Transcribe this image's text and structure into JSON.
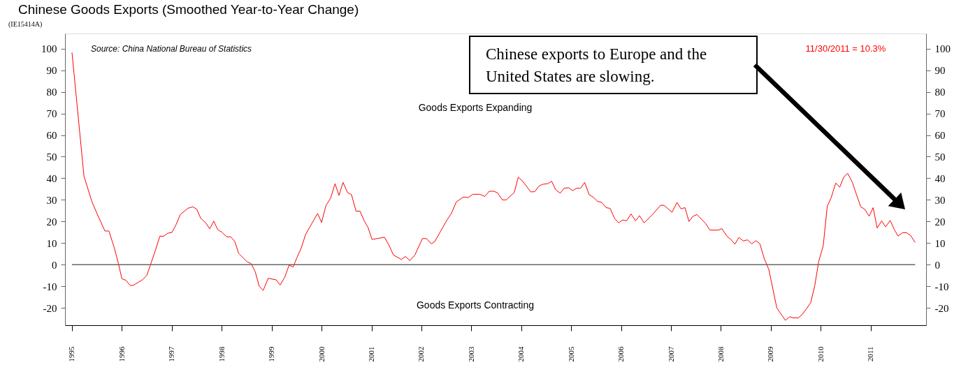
{
  "chart_data": {
    "type": "line",
    "title": "Chinese Goods Exports (Smoothed Year-to-Year Change)",
    "x": [
      1995.0,
      1995.24,
      1995.4,
      1995.52,
      1995.66,
      1995.74,
      1995.85,
      1995.93,
      1996.0,
      1996.08,
      1996.17,
      1996.24,
      1996.41,
      1996.5,
      1996.66,
      1996.76,
      1996.84,
      1996.92,
      1997.0,
      1997.08,
      1997.17,
      1997.32,
      1997.42,
      1997.5,
      1997.58,
      1997.68,
      1997.76,
      1997.84,
      1997.92,
      1998.0,
      1998.1,
      1998.18,
      1998.26,
      1998.34,
      1998.51,
      1998.59,
      1998.67,
      1998.75,
      1998.83,
      1998.93,
      1999.09,
      1999.17,
      1999.26,
      1999.35,
      1999.43,
      1999.51,
      1999.59,
      1999.68,
      1999.84,
      1999.92,
      2000.0,
      2000.09,
      2000.18,
      2000.27,
      2000.35,
      2000.43,
      2000.52,
      2000.6,
      2000.69,
      2000.77,
      2000.85,
      2000.93,
      2001.01,
      2001.26,
      2001.34,
      2001.44,
      2001.6,
      2001.68,
      2001.77,
      2001.87,
      2002.02,
      2002.1,
      2002.2,
      2002.27,
      2002.52,
      2002.6,
      2002.7,
      2002.84,
      2002.94,
      2003.03,
      2003.17,
      2003.27,
      2003.36,
      2003.45,
      2003.53,
      2003.62,
      2003.7,
      2003.86,
      2003.94,
      2004.03,
      2004.19,
      2004.27,
      2004.36,
      2004.43,
      2004.53,
      2004.61,
      2004.69,
      2004.78,
      2004.86,
      2004.95,
      2005.03,
      2005.11,
      2005.19,
      2005.27,
      2005.36,
      2005.45,
      2005.53,
      2005.61,
      2005.7,
      2005.78,
      2005.87,
      2005.95,
      2006.03,
      2006.11,
      2006.2,
      2006.29,
      2006.37,
      2006.46,
      2006.63,
      2006.79,
      2006.86,
      2007.02,
      2007.12,
      2007.2,
      2007.28,
      2007.36,
      2007.44,
      2007.52,
      2007.7,
      2007.78,
      2007.95,
      2008.02,
      2008.12,
      2008.2,
      2008.28,
      2008.36,
      2008.45,
      2008.53,
      2008.62,
      2008.7,
      2008.78,
      2008.87,
      2008.96,
      2009.12,
      2009.29,
      2009.38,
      2009.45,
      2009.55,
      2009.63,
      2009.71,
      2009.8,
      2009.88,
      2009.96,
      2010.05,
      2010.13,
      2010.21,
      2010.3,
      2010.38,
      2010.46,
      2010.54,
      2010.63,
      2010.8,
      2010.88,
      2010.97,
      2011.05,
      2011.13,
      2011.22,
      2011.3,
      2011.39,
      2011.48,
      2011.55,
      2011.64,
      2011.72,
      2011.8,
      2011.89
    ],
    "series": [
      {
        "color": "#ff0000",
        "values": [
          98.2,
          41,
          29.1,
          22.7,
          15.6,
          15.6,
          7.6,
          0.5,
          -6.5,
          -7.2,
          -9.7,
          -9.4,
          -7,
          -4.9,
          5.9,
          13.2,
          13.2,
          14.6,
          14.9,
          18.3,
          23.2,
          26.1,
          26.8,
          25.7,
          21.4,
          19.4,
          16.6,
          20.2,
          16.2,
          15.1,
          12.9,
          12.9,
          10.8,
          5.2,
          1.3,
          0.5,
          -3.2,
          -9.9,
          -11.9,
          -6.3,
          -7,
          -9.4,
          -5.9,
          -0.2,
          -1.1,
          3.5,
          7.6,
          14,
          20.5,
          23.7,
          19.6,
          27.5,
          30.7,
          37.5,
          32.1,
          38.1,
          33.4,
          32.4,
          24.8,
          24.8,
          20.5,
          17.3,
          11.7,
          12.7,
          9.5,
          4.5,
          2.4,
          3.8,
          1.9,
          4.5,
          12.1,
          12.1,
          9.7,
          10.8,
          21,
          23.7,
          29.1,
          31.3,
          31.1,
          32.6,
          32.6,
          31.6,
          34,
          34,
          33.2,
          30,
          30,
          33.4,
          40.5,
          38.6,
          33.7,
          33.8,
          36.5,
          37.2,
          37.5,
          38.6,
          34.7,
          33.1,
          35.4,
          35.6,
          34.3,
          35.4,
          35.4,
          38.1,
          32.4,
          31.1,
          29.3,
          28.9,
          26.4,
          26.1,
          21.4,
          19.4,
          20.7,
          20.3,
          23.5,
          20.3,
          22.7,
          19.4,
          23.2,
          27.5,
          27.5,
          24.3,
          28.8,
          25.9,
          26.4,
          20,
          22.4,
          23.2,
          18.9,
          16,
          16,
          16.7,
          13.2,
          11.7,
          9.5,
          12.6,
          11,
          11.5,
          9.7,
          11.1,
          9.7,
          2.7,
          -2.2,
          -20,
          -25.7,
          -24.1,
          -24.6,
          -24.6,
          -23,
          -20.5,
          -17.5,
          -9.7,
          1.6,
          8.8,
          27,
          31.1,
          37.8,
          35.9,
          40.5,
          42.3,
          38.3,
          26.8,
          25.7,
          22.4,
          26.4,
          17,
          20.3,
          17.5,
          20.5,
          16,
          13.3,
          14.8,
          14.8,
          13.5,
          10.3
        ]
      }
    ],
    "xlim": [
      1994.86,
      2012.11
    ],
    "xticks": [
      1995,
      1996,
      1997,
      1998,
      1999,
      2000,
      2001,
      2002,
      2003,
      2004,
      2005,
      2006,
      2007,
      2008,
      2009,
      2010,
      2011
    ],
    "ylim": [
      -28,
      107
    ],
    "yticks": [
      -20,
      -10,
      0,
      10,
      20,
      30,
      40,
      50,
      60,
      70,
      80,
      90,
      100
    ],
    "y2lim": [
      -28,
      107
    ],
    "y2ticks": [
      -20,
      -10,
      0,
      10,
      20,
      30,
      40,
      50,
      60,
      70,
      80,
      90,
      100
    ],
    "ref_lines": [
      {
        "axis": "y",
        "value": 0,
        "color": "#666666"
      }
    ],
    "annotations": [
      "(IE15414A)",
      "Source: China National Bureau of Statistics",
      "Goods Exports Expanding",
      "Goods Exports Contracting",
      "11/30/2011 = 10.3%",
      "Chinese exports to Europe and the United States are slowing."
    ]
  }
}
